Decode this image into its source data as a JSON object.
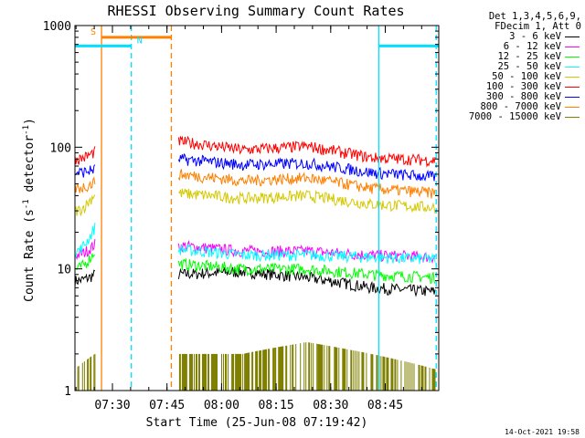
{
  "chart_data": {
    "type": "line",
    "title": "RHESSI Observing Summary Count Rates",
    "xlabel": "Start Time (25-Jun-08 07:19:42)",
    "ylabel_main": "Count Rate (s",
    "ylabel_sup1": "-1",
    "ylabel_mid": " detector",
    "ylabel_sup2": "-1",
    "ylabel_end": ")",
    "yscale": "log",
    "ylim": [
      1,
      1000
    ],
    "xlim_minutes": [
      0,
      100
    ],
    "x_ticks": [
      {
        "label": "07:30",
        "minute": 10.3
      },
      {
        "label": "07:45",
        "minute": 25.3
      },
      {
        "label": "08:00",
        "minute": 40.3
      },
      {
        "label": "08:15",
        "minute": 55.3
      },
      {
        "label": "08:30",
        "minute": 70.3
      },
      {
        "label": "08:45",
        "minute": 85.3
      }
    ],
    "y_ticks": [
      {
        "label": "1",
        "value": 1
      },
      {
        "label": "10",
        "value": 10
      },
      {
        "label": "100",
        "value": 100
      },
      {
        "label": "1000",
        "value": 1000
      }
    ],
    "legend_header": [
      "Det 1,3,4,5,6,9,",
      "FDecim 1, Att 0"
    ],
    "series": [
      {
        "name": "3 - 6 keV",
        "color": "#000000",
        "seg1": [
          8,
          9
        ],
        "seg2": [
          9,
          9.5,
          8.5,
          7,
          6.5
        ]
      },
      {
        "name": "6 - 12 keV",
        "color": "#ff00ff",
        "seg1": [
          13,
          16
        ],
        "seg2": [
          15.5,
          14,
          14,
          13,
          12.5
        ]
      },
      {
        "name": "12 - 25 keV",
        "color": "#00ff00",
        "seg1": [
          10,
          14
        ],
        "seg2": [
          11,
          10,
          10,
          9,
          8.5
        ]
      },
      {
        "name": "25 - 50 keV",
        "color": "#00ffff",
        "seg1": [
          14,
          22
        ],
        "seg2": [
          14.5,
          13,
          13,
          12.5,
          12
        ]
      },
      {
        "name": "50 - 100 keV",
        "color": "#d4c800",
        "seg1": [
          30,
          42
        ],
        "seg2": [
          42,
          38,
          40,
          34,
          32
        ]
      },
      {
        "name": "100 - 300 keV",
        "color": "#ff0000",
        "seg1": [
          80,
          92
        ],
        "seg2": [
          112,
          95,
          102,
          82,
          78
        ]
      },
      {
        "name": "300 - 800 keV",
        "color": "#0000ff",
        "seg1": [
          62,
          66
        ],
        "seg2": [
          80,
          72,
          74,
          62,
          57
        ]
      },
      {
        "name": "800 - 7000 keV",
        "color": "#ff8000",
        "seg1": [
          46,
          52
        ],
        "seg2": [
          60,
          53,
          56,
          46,
          42
        ]
      },
      {
        "name": "7000 - 15000 keV",
        "color": "#808000",
        "seg1": [
          1.5,
          2
        ],
        "seg2": [
          2,
          2,
          2.5,
          2,
          1.5
        ]
      }
    ],
    "segments_minutes": {
      "seg1": [
        0,
        5.5
      ],
      "seg2": [
        28.5,
        99
      ]
    },
    "flags": [
      {
        "label": "S",
        "color": "#ff8000",
        "start_min": 7.3,
        "end_min": 26.5,
        "level": 800,
        "style": "solid"
      },
      {
        "label": "N",
        "color": "#00e0ff",
        "start_min": 0,
        "end_min": 15.5,
        "level": 680,
        "style": "solid"
      },
      {
        "label": "",
        "color": "#00e0ff",
        "start_min": 83.5,
        "end_min": 100,
        "level": 680,
        "style": "solid"
      }
    ],
    "vlines": [
      {
        "minute": 7.3,
        "color": "#ff8000",
        "style": "solid"
      },
      {
        "minute": 26.5,
        "color": "#ff8000",
        "style": "dashed"
      },
      {
        "minute": 15.5,
        "color": "#00e0ff",
        "style": "dashed"
      },
      {
        "minute": 83.5,
        "color": "#00e0ff",
        "style": "solid"
      },
      {
        "minute": 99.3,
        "color": "#00e0ff",
        "style": "dashed"
      }
    ]
  },
  "timestamp": "14-Oct-2021 19:58"
}
